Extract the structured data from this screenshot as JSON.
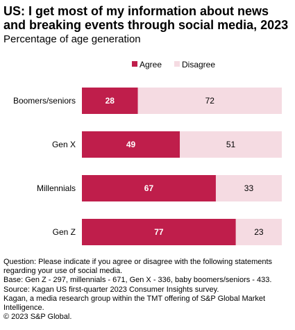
{
  "title": "US: I get most of my information about news and breaking events through social media, 2023",
  "subtitle": "Percentage of age generation",
  "chart_data": {
    "type": "bar",
    "orientation": "horizontal",
    "stacked": true,
    "categories": [
      "Boomers/seniors",
      "Gen X",
      "Millennials",
      "Gen Z"
    ],
    "series": [
      {
        "name": "Agree",
        "values": [
          28,
          49,
          67,
          77
        ],
        "color": "#BF1E4B"
      },
      {
        "name": "Disagree",
        "values": [
          72,
          51,
          33,
          23
        ],
        "color": "#F5DBE2"
      }
    ],
    "xlim": [
      0,
      100
    ],
    "legend_position": "top",
    "grid": false,
    "data_label_colors": {
      "Agree": "#ffffff",
      "Disagree": "#000000"
    }
  },
  "notes": [
    "Question: Please indicate if you agree or disagree with the following statements regarding your use of social media.",
    "Base: Gen Z - 297, millennials - 671, Gen X - 336, baby boomers/seniors - 433.",
    "Source: Kagan US first-quarter 2023 Consumer Insights survey.",
    "Kagan, a media research group within the TMT offering of S&P Global Market Intelligence.",
    "© 2023 S&P Global."
  ]
}
